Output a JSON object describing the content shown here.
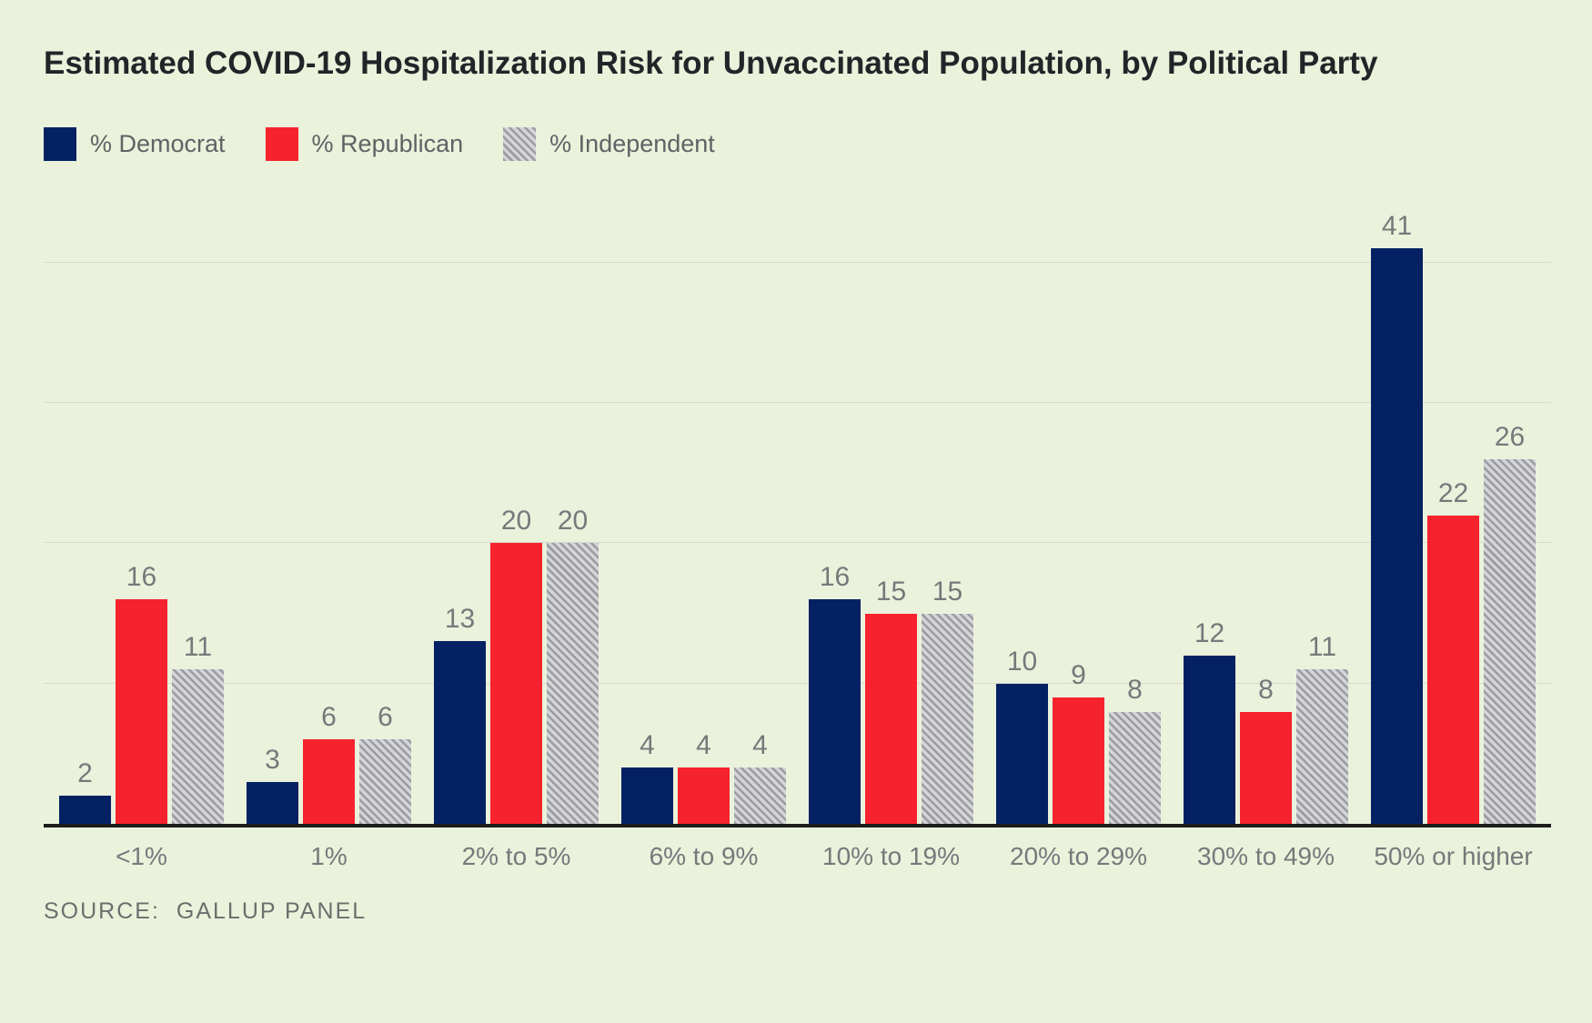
{
  "title": "Estimated COVID-19 Hospitalization Risk for Unvaccinated Population, by Political Party",
  "legend": [
    {
      "label": "% Democrat",
      "swatch": "solid-navy"
    },
    {
      "label": "% Republican",
      "swatch": "solid-red"
    },
    {
      "label": "% Independent",
      "swatch": "gray-diagonal-hatch"
    }
  ],
  "colors": {
    "background": "#EAF2DC",
    "democrat": "#032163",
    "republican": "#F6232E",
    "independent_hatch_dark": "#9B9BA3",
    "independent_hatch_light": "#D5D5D8",
    "gridline": "#D7DBCE",
    "axis_line": "#1D1D1B",
    "label_gray": "#76797A",
    "title_color": "#222528"
  },
  "source": {
    "label": "SOURCE:",
    "value": "GALLUP PANEL"
  },
  "chart_data": {
    "type": "bar",
    "title": "Estimated COVID-19 Hospitalization Risk for Unvaccinated Population, by Political Party",
    "categories": [
      "<1%",
      "1%",
      "2% to 5%",
      "6% to 9%",
      "10% to 19%",
      "20% to 29%",
      "30% to 49%",
      "50% or higher"
    ],
    "series": [
      {
        "name": "% Democrat",
        "values": [
          2,
          3,
          13,
          4,
          16,
          10,
          12,
          41
        ]
      },
      {
        "name": "% Republican",
        "values": [
          16,
          6,
          20,
          4,
          15,
          9,
          8,
          22
        ]
      },
      {
        "name": "% Independent",
        "values": [
          11,
          6,
          20,
          4,
          15,
          8,
          11,
          26
        ]
      }
    ],
    "xlabel": "",
    "ylabel": "",
    "ylim": [
      0,
      43
    ],
    "gridlines": [
      10,
      20,
      30,
      40
    ],
    "grid": true,
    "y_axis_labels_visible": false,
    "value_labels": true,
    "legend_position": "top-left",
    "source": "GALLUP PANEL"
  }
}
